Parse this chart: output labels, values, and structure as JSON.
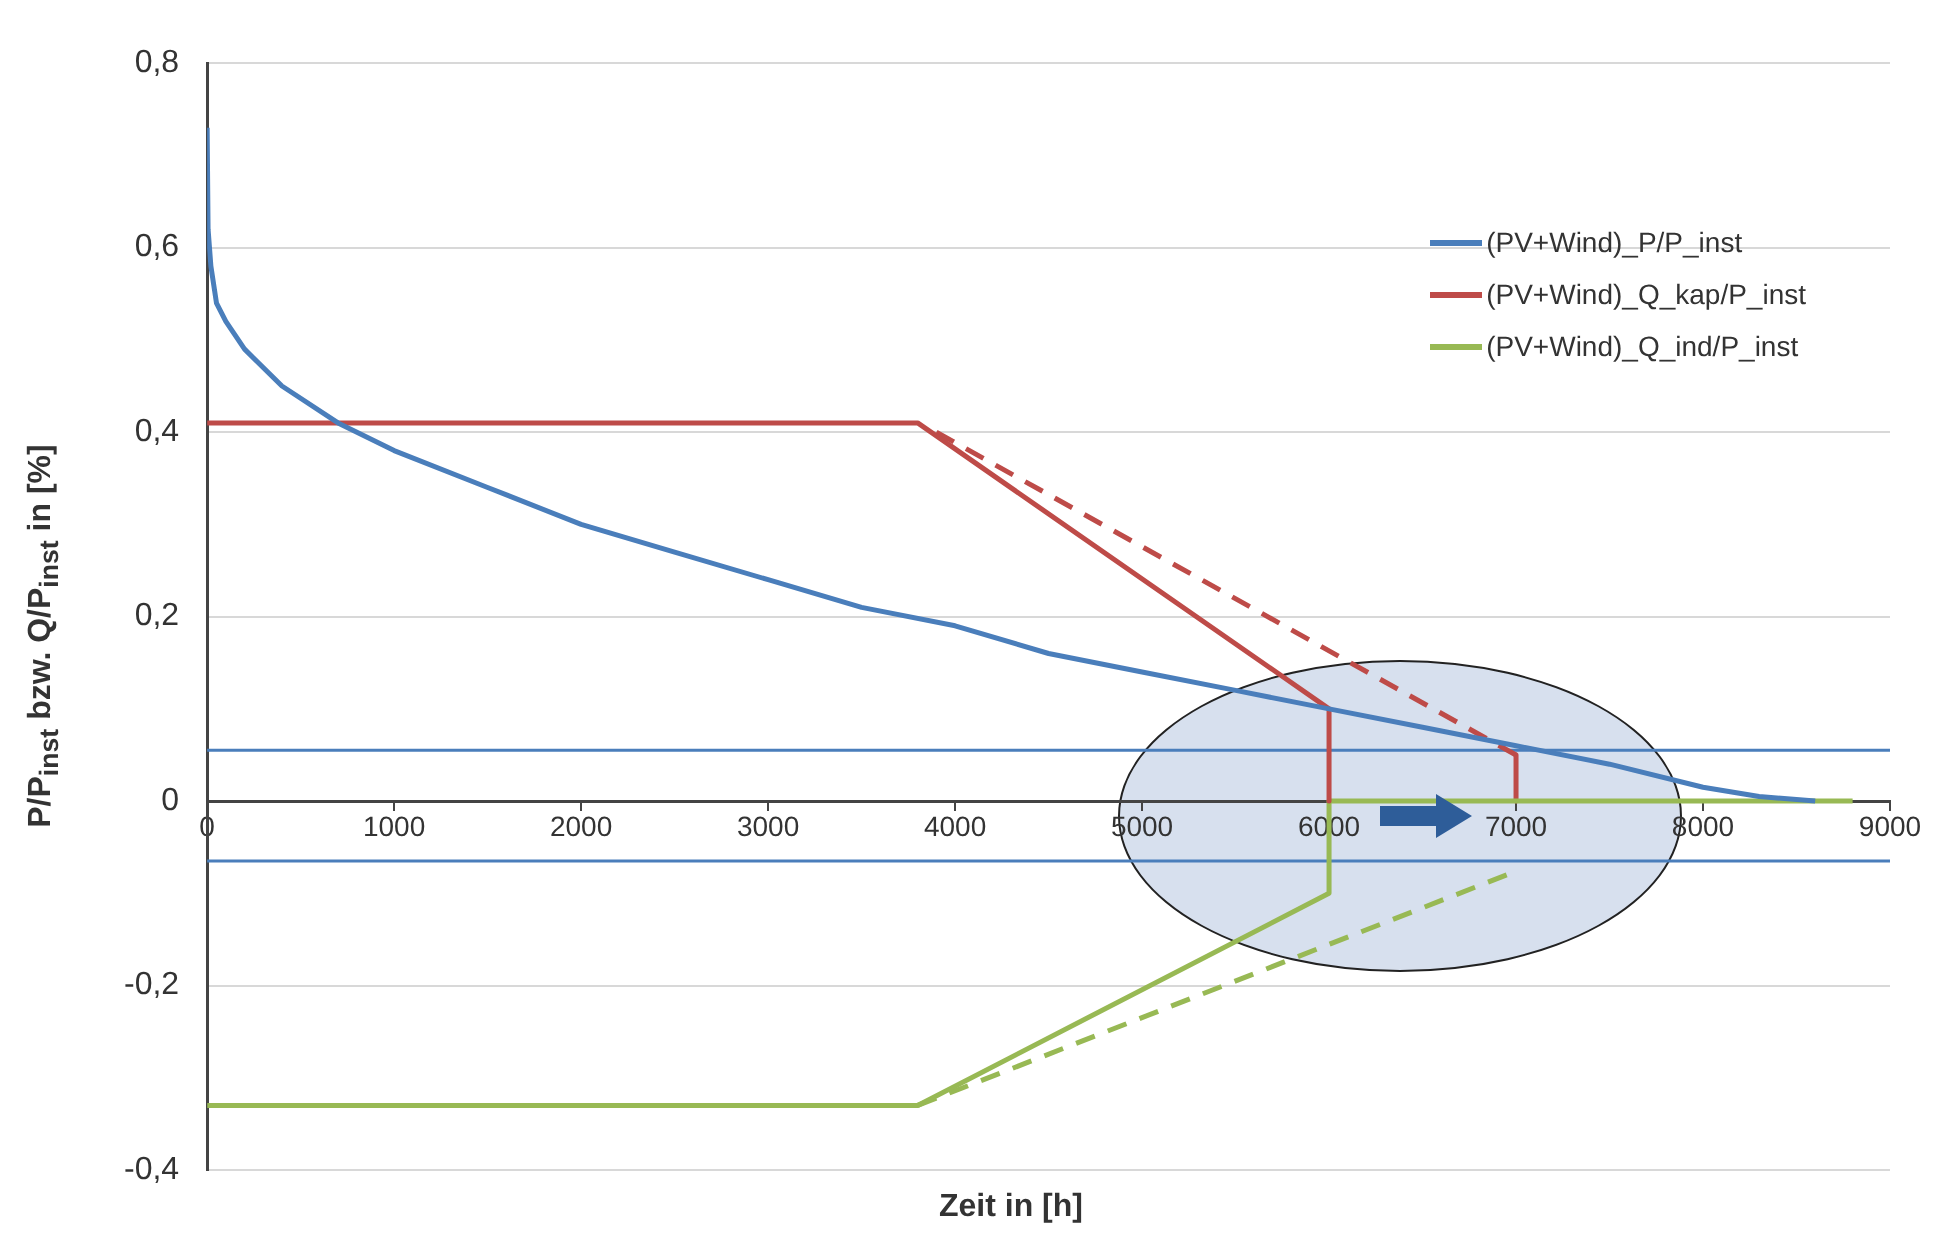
{
  "chart_data": {
    "type": "line",
    "xlabel": "Zeit in [h]",
    "ylabel": "P/P$_{inst}$ bzw. Q/P$_{inst}$ in [%]",
    "xlim": [
      0,
      9000
    ],
    "xticks": [
      0,
      1000,
      2000,
      3000,
      4000,
      5000,
      6000,
      7000,
      8000,
      9000
    ],
    "ylim": [
      -0.4,
      0.8
    ],
    "yticks": [
      {
        "value": -0.4,
        "label": "-0,4"
      },
      {
        "value": -0.2,
        "label": "-0,2"
      },
      0,
      {
        "value": 0.2,
        "label": "0,2"
      },
      {
        "value": 0.4,
        "label": "0,4"
      },
      {
        "value": 0.6,
        "label": "0,6"
      },
      {
        "value": 0.8,
        "label": "0,8"
      }
    ],
    "grid": "y",
    "legend": "top right",
    "marker": "none",
    "series": [
      {
        "name": "(PV+Wind)_P/P_inst",
        "color": "#4a7ebb",
        "x": [
          0,
          5,
          20,
          50,
          100,
          200,
          400,
          700,
          1000,
          1500,
          2000,
          2500,
          3000,
          3500,
          4000,
          4500,
          5000,
          5500,
          6000,
          6500,
          7000,
          7500,
          8000,
          8300,
          8600
        ],
        "values": [
          0.73,
          0.62,
          0.58,
          0.54,
          0.52,
          0.49,
          0.45,
          0.41,
          0.38,
          0.34,
          0.3,
          0.27,
          0.24,
          0.21,
          0.19,
          0.16,
          0.14,
          0.12,
          0.1,
          0.08,
          0.06,
          0.04,
          0.015,
          0.005,
          0
        ]
      },
      {
        "name": "(PV+Wind)_Q_kap/P_inst",
        "color": "#be4b48",
        "x": [
          0,
          3800,
          6000,
          6000
        ],
        "values": [
          0.41,
          0.41,
          0.1,
          0
        ]
      },
      {
        "name": "(PV+Wind)_Q_ind/P_inst",
        "color": "#98b954",
        "x": [
          0,
          3800,
          6000,
          6000,
          8800
        ],
        "values": [
          -0.33,
          -0.33,
          -0.1,
          0,
          0
        ]
      },
      {
        "color": "#be4b48",
        "line_style": "dashed",
        "x": [
          3900,
          7000
        ],
        "values": [
          0.4,
          0.05
        ]
      },
      {
        "color": "#be4b48",
        "x": [
          7000,
          7000
        ],
        "values": [
          0.05,
          0
        ]
      },
      {
        "color": "#98b954",
        "line_style": "dashed",
        "x": [
          3800,
          6950
        ],
        "values": [
          -0.33,
          -0.08
        ]
      }
    ],
    "ref_lines": [
      {
        "axis": "y",
        "value": 0.055,
        "color": "#4a7ebb"
      },
      {
        "axis": "y",
        "value": -0.065,
        "color": "#4a7ebb"
      }
    ]
  }
}
